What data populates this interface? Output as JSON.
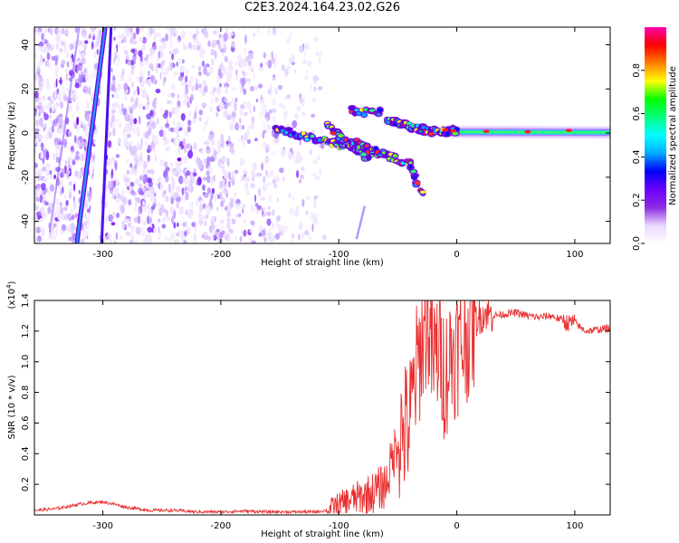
{
  "title": "C2E3.2024.164.23.02.G26",
  "chart_data": [
    {
      "type": "heatmap",
      "xlabel": "Height of straight line (km)",
      "ylabel": "Frequency (Hz)",
      "xlim": [
        -358,
        130
      ],
      "ylim": [
        -50,
        48
      ],
      "x_ticks": [
        -300,
        -200,
        -100,
        0,
        100
      ],
      "y_ticks": [
        -40,
        -20,
        0,
        20,
        40
      ],
      "colorbar": {
        "label": "Normalized spectral amplitude",
        "range": [
          0,
          1
        ],
        "ticks": [
          "0.0",
          "0.2",
          "0.4",
          "0.6",
          "0.8"
        ],
        "colors": [
          "#ffffff",
          "#e8d8ff",
          "#8a2be2",
          "#6a00ff",
          "#0000ff",
          "#00aaff",
          "#00ffff",
          "#00ff80",
          "#00ff00",
          "#ffff00",
          "#ff8000",
          "#ff0000",
          "#ff00aa"
        ]
      },
      "features": {
        "noise_region_x": [
          -358,
          -112
        ],
        "diagonal_stripe_1": {
          "x": [
            -322,
            -298
          ],
          "y": [
            -50,
            48
          ]
        },
        "diagonal_stripe_2": {
          "x": [
            -301,
            -293
          ],
          "y": [
            -50,
            48
          ]
        },
        "main_signal": {
          "x": [
            -155,
            130
          ],
          "y": [
            3,
            0
          ]
        }
      }
    },
    {
      "type": "line",
      "xlabel": "Height of straight line (km)",
      "ylabel": "SNR (10 * v/v)",
      "multiplier": "(x10",
      "multiplier_exp": "4",
      "multiplier_close": ")",
      "xlim": [
        -358,
        130
      ],
      "ylim": [
        0,
        1.4
      ],
      "x_ticks": [
        -300,
        -200,
        -100,
        0,
        100
      ],
      "y_ticks": [
        "0.2",
        "0.4",
        "0.6",
        "0.8",
        "1.0",
        "1.2",
        "1.4"
      ],
      "color": "#e83030",
      "series": [
        {
          "x": [
            -358,
            -340,
            -320,
            -310,
            -300,
            -290,
            -280,
            -260,
            -240,
            -220,
            -200,
            -180,
            -160,
            -140,
            -120,
            -110,
            -100,
            -90,
            -80,
            -70,
            -60,
            -50,
            -45,
            -40,
            -35,
            -30,
            -25,
            -20,
            -15,
            -10,
            -5,
            0,
            5,
            10,
            15,
            20,
            25,
            30,
            40,
            50,
            60,
            70,
            80,
            90,
            95,
            100,
            105,
            110,
            120,
            130
          ],
          "y": [
            0.03,
            0.04,
            0.07,
            0.08,
            0.085,
            0.07,
            0.05,
            0.03,
            0.03,
            0.02,
            0.02,
            0.025,
            0.02,
            0.02,
            0.02,
            0.03,
            0.07,
            0.1,
            0.12,
            0.15,
            0.2,
            0.5,
            0.55,
            0.6,
            0.9,
            1.1,
            1.3,
            1.0,
            1.1,
            0.9,
            1.05,
            1.08,
            1.12,
            1.2,
            1.26,
            1.3,
            1.32,
            1.3,
            1.31,
            1.32,
            1.3,
            1.29,
            1.3,
            1.27,
            1.25,
            1.26,
            1.22,
            1.2,
            1.21,
            1.22
          ]
        }
      ]
    }
  ]
}
